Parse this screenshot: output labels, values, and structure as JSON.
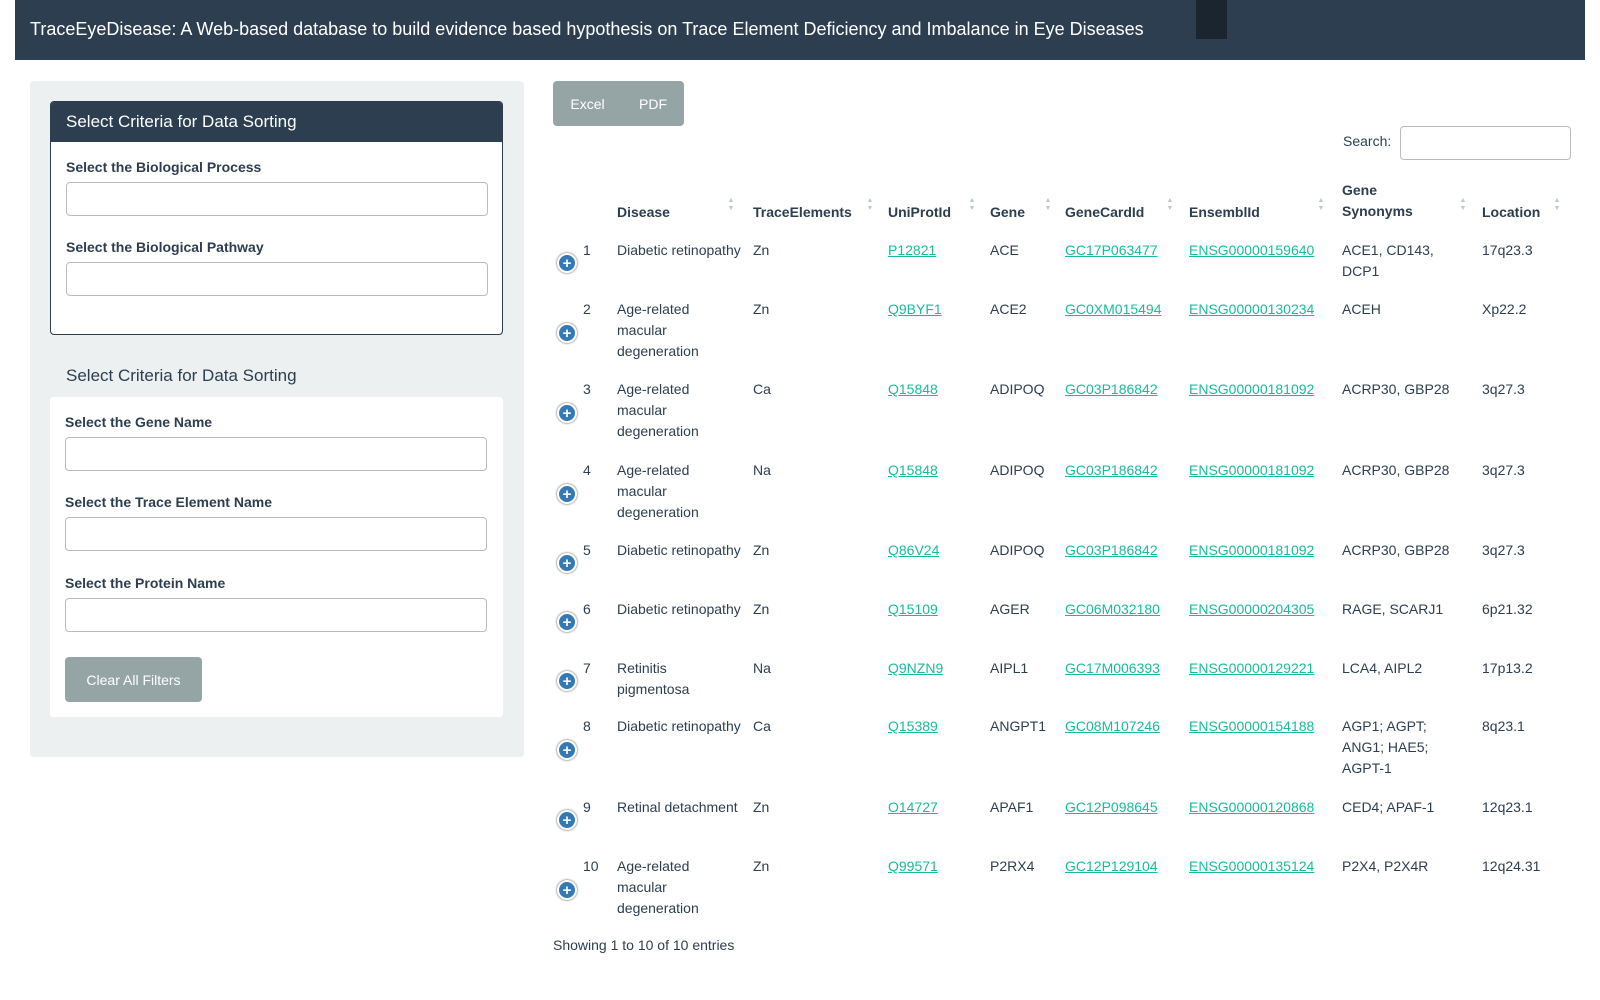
{
  "header": {
    "title": "TraceEyeDisease: A Web-based database to build evidence based hypothesis on Trace Element Deficiency and Imbalance in Eye Diseases"
  },
  "sidebar": {
    "panel1": {
      "title": "Select Criteria for Data Sorting",
      "fields": [
        {
          "label": "Select the Biological Process",
          "value": ""
        },
        {
          "label": "Select the Biological Pathway",
          "value": ""
        }
      ]
    },
    "panel2": {
      "title": "Select Criteria for Data Sorting",
      "fields": [
        {
          "label": "Select the Gene Name",
          "value": ""
        },
        {
          "label": "Select the Trace Element Name",
          "value": ""
        },
        {
          "label": "Select the Protein Name",
          "value": ""
        }
      ],
      "clear_label": "Clear All Filters"
    }
  },
  "toolbar": {
    "excel_label": "Excel",
    "pdf_label": "PDF",
    "search_label": "Search:",
    "search_value": ""
  },
  "table": {
    "columns": [
      "Disease",
      "TraceElements",
      "UniProtId",
      "Gene",
      "GeneCardId",
      "EnsemblId",
      "Gene Synonyms",
      "Location"
    ],
    "rows": [
      {
        "n": "1",
        "disease": "Diabetic retinopathy",
        "trace": "Zn",
        "uniprot": "P12821",
        "gene": "ACE",
        "genecard": "GC17P063477",
        "ensembl": "ENSG00000159640",
        "synonyms": "ACE1, CD143, DCP1",
        "location": "17q23.3"
      },
      {
        "n": "2",
        "disease": "Age-related macular degeneration",
        "trace": "Zn",
        "uniprot": "Q9BYF1",
        "gene": "ACE2",
        "genecard": "GC0XM015494",
        "ensembl": "ENSG00000130234",
        "synonyms": "ACEH",
        "location": "Xp22.2"
      },
      {
        "n": "3",
        "disease": "Age-related macular degeneration",
        "trace": "Ca",
        "uniprot": "Q15848",
        "gene": "ADIPOQ",
        "genecard": "GC03P186842",
        "ensembl": "ENSG00000181092",
        "synonyms": "ACRP30, GBP28",
        "location": "3q27.3"
      },
      {
        "n": "4",
        "disease": "Age-related macular degeneration",
        "trace": "Na",
        "uniprot": "Q15848",
        "gene": "ADIPOQ",
        "genecard": "GC03P186842",
        "ensembl": "ENSG00000181092",
        "synonyms": "ACRP30, GBP28",
        "location": "3q27.3"
      },
      {
        "n": "5",
        "disease": "Diabetic retinopathy",
        "trace": "Zn",
        "uniprot": "Q86V24",
        "gene": "ADIPOQ",
        "genecard": "GC03P186842",
        "ensembl": "ENSG00000181092",
        "synonyms": "ACRP30, GBP28",
        "location": "3q27.3"
      },
      {
        "n": "6",
        "disease": "Diabetic retinopathy",
        "trace": "Zn",
        "uniprot": "Q15109",
        "gene": "AGER",
        "genecard": "GC06M032180",
        "ensembl": "ENSG00000204305",
        "synonyms": "RAGE, SCARJ1",
        "location": "6p21.32"
      },
      {
        "n": "7",
        "disease": "Retinitis pigmentosa",
        "trace": "Na",
        "uniprot": "Q9NZN9",
        "gene": "AIPL1",
        "genecard": "GC17M006393",
        "ensembl": "ENSG00000129221",
        "synonyms": "LCA4, AIPL2",
        "location": "17p13.2"
      },
      {
        "n": "8",
        "disease": "Diabetic retinopathy",
        "trace": "Ca",
        "uniprot": "Q15389",
        "gene": "ANGPT1",
        "genecard": "GC08M107246",
        "ensembl": "ENSG00000154188",
        "synonyms": "AGP1; AGPT; ANG1; HAE5; AGPT-1",
        "location": "8q23.1"
      },
      {
        "n": "9",
        "disease": "Retinal detachment",
        "trace": "Zn",
        "uniprot": "O14727",
        "gene": "APAF1",
        "genecard": "GC12P098645",
        "ensembl": "ENSG00000120868",
        "synonyms": "CED4; APAF-1",
        "location": "12q23.1"
      },
      {
        "n": "10",
        "disease": "Age-related macular degeneration",
        "trace": "Zn",
        "uniprot": "Q99571",
        "gene": "P2RX4",
        "genecard": "GC12P129104",
        "ensembl": "ENSG00000135124",
        "synonyms": "P2X4, P2X4R",
        "location": "12q24.31"
      }
    ],
    "info": "Showing 1 to 10 of 10 entries"
  }
}
